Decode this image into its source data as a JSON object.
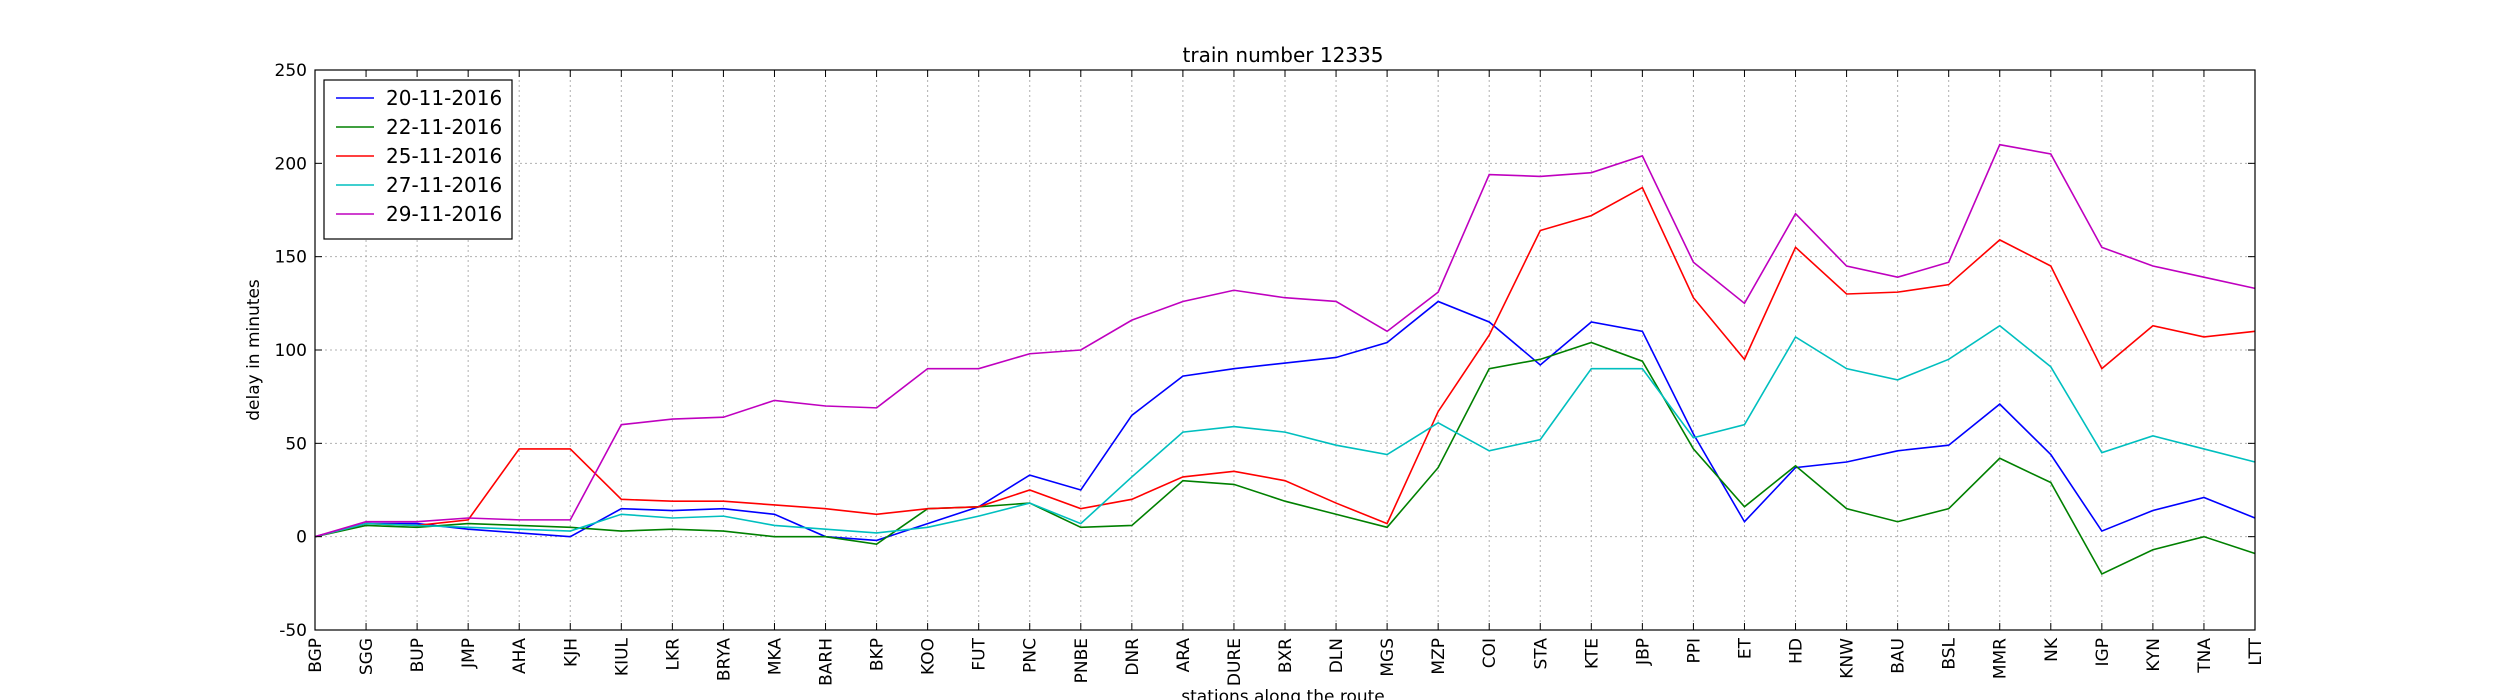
{
  "chart_data": {
    "type": "line",
    "title": "train number 12335",
    "xlabel": "stations along the route",
    "ylabel": "delay in minutes",
    "ylim": [
      -50,
      250
    ],
    "yticks": [
      -50,
      0,
      50,
      100,
      150,
      200,
      250
    ],
    "grid": true,
    "legend_position": "top-left",
    "categories": [
      "BGP",
      "SGG",
      "BUP",
      "JMP",
      "AHA",
      "KJH",
      "KIUL",
      "LKR",
      "BRYA",
      "MKA",
      "BARH",
      "BKP",
      "KOO",
      "FUT",
      "PNC",
      "PNBE",
      "DNR",
      "ARA",
      "DURE",
      "BXR",
      "DLN",
      "MGS",
      "MZP",
      "COI",
      "STA",
      "KTE",
      "JBP",
      "PPI",
      "ET",
      "HD",
      "KNW",
      "BAU",
      "BSL",
      "MMR",
      "NK",
      "IGP",
      "KYN",
      "TNA",
      "LTT"
    ],
    "series": [
      {
        "name": "20-11-2016",
        "color": "#0000ff",
        "values": [
          0,
          7,
          7,
          4,
          2,
          0,
          15,
          14,
          15,
          12,
          0,
          -2,
          7,
          16,
          33,
          25,
          65,
          86,
          90,
          93,
          96,
          104,
          126,
          115,
          92,
          115,
          110,
          55,
          8,
          37,
          40,
          46,
          49,
          71,
          44,
          3,
          14,
          21,
          10
        ]
      },
      {
        "name": "22-11-2016",
        "color": "#008000",
        "values": [
          0,
          6,
          5,
          7,
          6,
          5,
          3,
          4,
          3,
          0,
          0,
          -4,
          15,
          16,
          18,
          5,
          6,
          30,
          28,
          19,
          12,
          5,
          37,
          90,
          95,
          104,
          94,
          47,
          16,
          38,
          15,
          8,
          15,
          42,
          29,
          -20,
          -7,
          0,
          -9
        ]
      },
      {
        "name": "25-11-2016",
        "color": "#ff0000",
        "values": [
          0,
          7,
          6,
          9,
          47,
          47,
          20,
          19,
          19,
          17,
          15,
          12,
          15,
          16,
          25,
          15,
          20,
          32,
          35,
          30,
          18,
          7,
          67,
          108,
          164,
          172,
          187,
          128,
          95,
          155,
          130,
          131,
          135,
          159,
          145,
          90,
          113,
          107,
          110
        ]
      },
      {
        "name": "27-11-2016",
        "color": "#00bfbf",
        "values": [
          0,
          7,
          6,
          5,
          4,
          3,
          12,
          10,
          11,
          6,
          4,
          2,
          5,
          11,
          18,
          7,
          32,
          56,
          59,
          56,
          49,
          44,
          61,
          46,
          52,
          90,
          90,
          53,
          60,
          107,
          90,
          84,
          95,
          113,
          91,
          45,
          54,
          47,
          40
        ]
      },
      {
        "name": "29-11-2016",
        "color": "#bf00bf",
        "values": [
          0,
          8,
          8,
          10,
          9,
          9,
          60,
          63,
          64,
          73,
          70,
          69,
          90,
          90,
          98,
          100,
          116,
          126,
          132,
          128,
          126,
          110,
          131,
          194,
          193,
          195,
          204,
          147,
          125,
          173,
          145,
          139,
          147,
          210,
          205,
          155,
          145,
          139,
          133
        ]
      }
    ]
  }
}
